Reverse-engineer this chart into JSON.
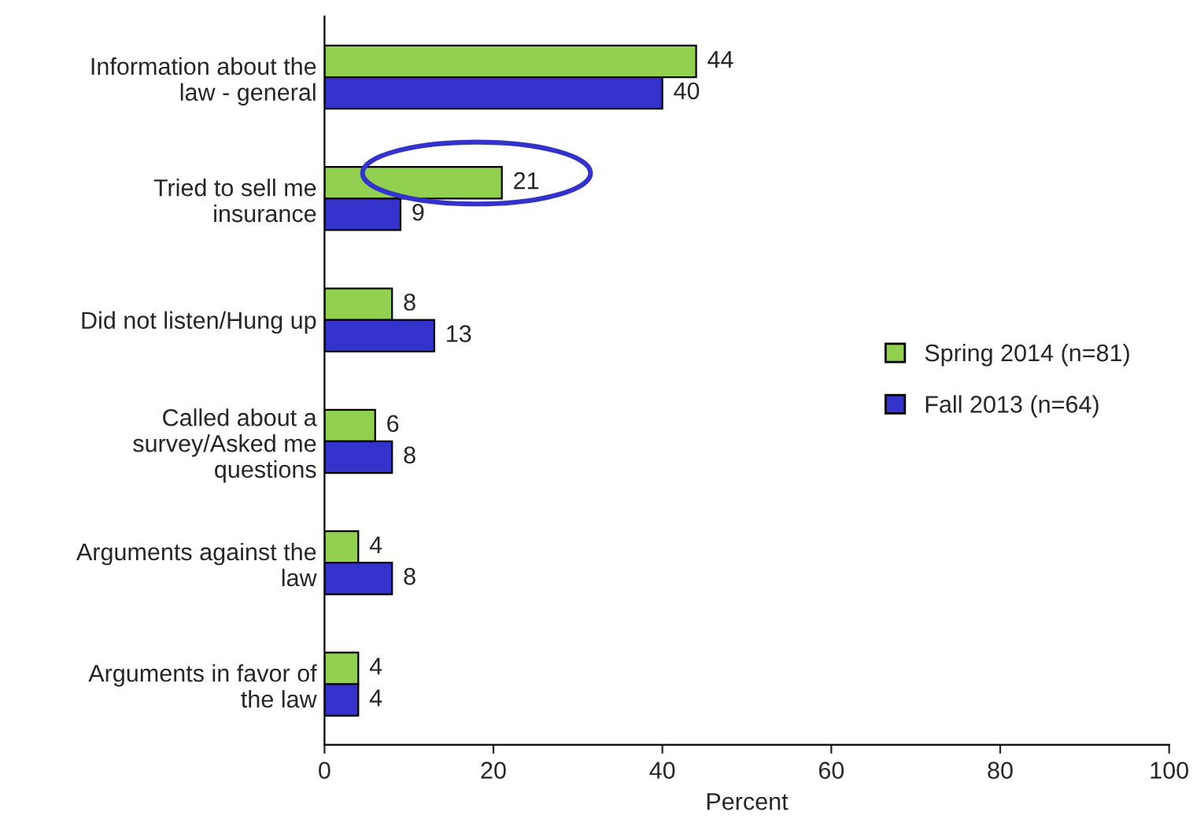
{
  "chart_data": {
    "type": "bar",
    "orientation": "horizontal",
    "xlabel": "Percent",
    "categories": [
      "Information about the\nlaw - general",
      "Tried to sell me\ninsurance",
      "Did not listen/Hung up",
      "Called about a\nsurvey/Asked me\nquestions",
      "Arguments against the\nlaw",
      "Arguments in favor of\nthe law"
    ],
    "series": [
      {
        "name": "Spring 2014 (n=81)",
        "color": "#92d050",
        "values": [
          44,
          21,
          8,
          6,
          4,
          4
        ]
      },
      {
        "name": "Fall 2013 (n=64)",
        "color": "#3333cc",
        "values": [
          40,
          9,
          13,
          8,
          8,
          4
        ]
      }
    ],
    "xlim": [
      0,
      100
    ],
    "xticks": [
      0,
      20,
      40,
      60,
      80,
      100
    ],
    "data_labels": true,
    "legend": "right",
    "grid": false
  }
}
